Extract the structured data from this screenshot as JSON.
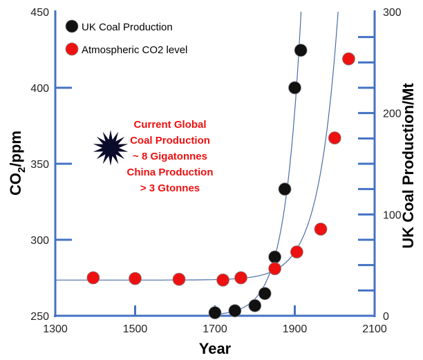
{
  "chart_data": {
    "type": "scatter",
    "xlabel": "Year",
    "ylabel_left_main": "CO",
    "ylabel_left_sub": "2",
    "ylabel_left_unit": "/ppm",
    "ylabel_right": "UK Coal Production/Mt",
    "xlim": [
      1300,
      2100
    ],
    "ylim_left": [
      250,
      450
    ],
    "ylim_right": [
      0,
      300
    ],
    "x_ticks": [
      1300,
      1500,
      1700,
      1900,
      2100
    ],
    "x_tick_labels": [
      "1300",
      "1500",
      "1700",
      "1900",
      "2100"
    ],
    "y_left_ticks": [
      250,
      300,
      350,
      400,
      450
    ],
    "y_left_tick_labels": [
      "250",
      "300",
      "350",
      "400",
      "450"
    ],
    "y_right_ticks": [
      0,
      100,
      200,
      300
    ],
    "y_right_tick_labels": [
      "0",
      "100",
      "200",
      "300"
    ],
    "colors": {
      "axis_blue": "#4472c4",
      "curve": "#4a6aa8",
      "co2_marker": "#ee1111",
      "coal_marker": "#111111",
      "annotation": "#ee1111"
    },
    "legend_position": "top-left",
    "series": [
      {
        "name": "UK Coal Production",
        "axis": "right",
        "marker_color": "#111111",
        "x": [
          1700,
          1750,
          1800,
          1825,
          1850,
          1875,
          1900,
          1915
        ],
        "y": [
          3,
          5,
          10,
          22,
          58,
          125,
          225,
          262
        ]
      },
      {
        "name": "Atmospheric CO2 level",
        "axis": "left",
        "marker_color": "#ee1111",
        "x": [
          1395,
          1500,
          1610,
          1720,
          1765,
          1850,
          1905,
          1965,
          2000,
          2035
        ],
        "y": [
          275,
          274.5,
          274,
          273.5,
          275,
          281,
          292,
          307,
          367,
          419
        ]
      }
    ],
    "annotation": {
      "lines": [
        "Current Global",
        "Coal Production",
        "~ 8 Gigatonnes",
        "China Production",
        "> 3 Gtonnes"
      ]
    }
  }
}
